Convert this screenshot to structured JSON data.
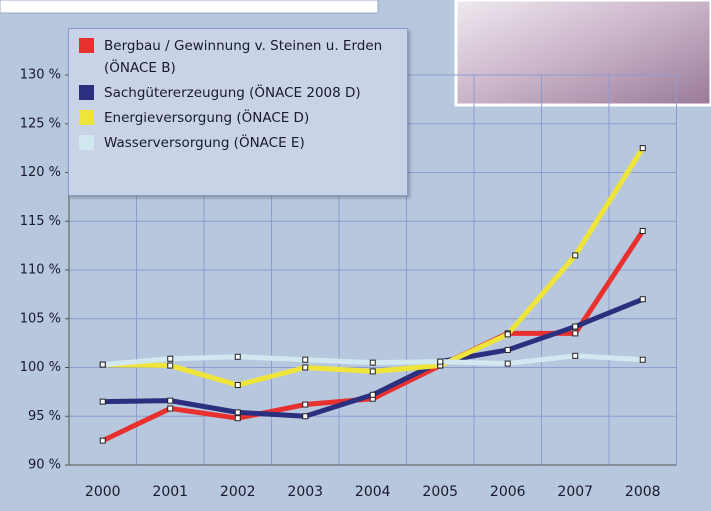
{
  "chart_data": {
    "type": "line",
    "categories": [
      "2000",
      "2001",
      "2002",
      "2003",
      "2004",
      "2005",
      "2006",
      "2007",
      "2008"
    ],
    "series": [
      {
        "name": "Bergbau / Gewinnung v. Steinen u. Erden (ÖNACE B)",
        "color": "#e8312f",
        "values": [
          92.5,
          95.8,
          94.8,
          96.2,
          96.8,
          100.2,
          103.5,
          103.5,
          114
        ]
      },
      {
        "name": "Sachgütererzeugung (ÖNACE 2008 D)",
        "color": "#2b2f7d",
        "values": [
          96.5,
          96.6,
          95.4,
          95.0,
          97.2,
          100.6,
          101.8,
          104.2,
          107
        ]
      },
      {
        "name": "Energieversorgung (ÖNACE D)",
        "color": "#efe53a",
        "values": [
          100.3,
          100.2,
          98.2,
          100.0,
          99.6,
          100.2,
          103.4,
          111.5,
          122.5
        ]
      },
      {
        "name": "Wasserversorgung (ÖNACE E)",
        "color": "#d2e8f0",
        "values": [
          100.3,
          100.9,
          101.1,
          100.8,
          100.5,
          100.6,
          100.4,
          101.2,
          100.8
        ]
      }
    ],
    "ylim": [
      90,
      130
    ],
    "yticks": [
      {
        "value": 90,
        "label": "90 %"
      },
      {
        "value": 95,
        "label": "95 %"
      },
      {
        "value": 100,
        "label": "100 %"
      },
      {
        "value": 105,
        "label": "105 %"
      },
      {
        "value": 110,
        "label": "110 %"
      },
      {
        "value": 115,
        "label": "115 %"
      },
      {
        "value": 120,
        "label": "120 %"
      },
      {
        "value": 125,
        "label": "125 %"
      },
      {
        "value": 130,
        "label": "130 %"
      }
    ],
    "grid": true,
    "legend": "upper left"
  }
}
